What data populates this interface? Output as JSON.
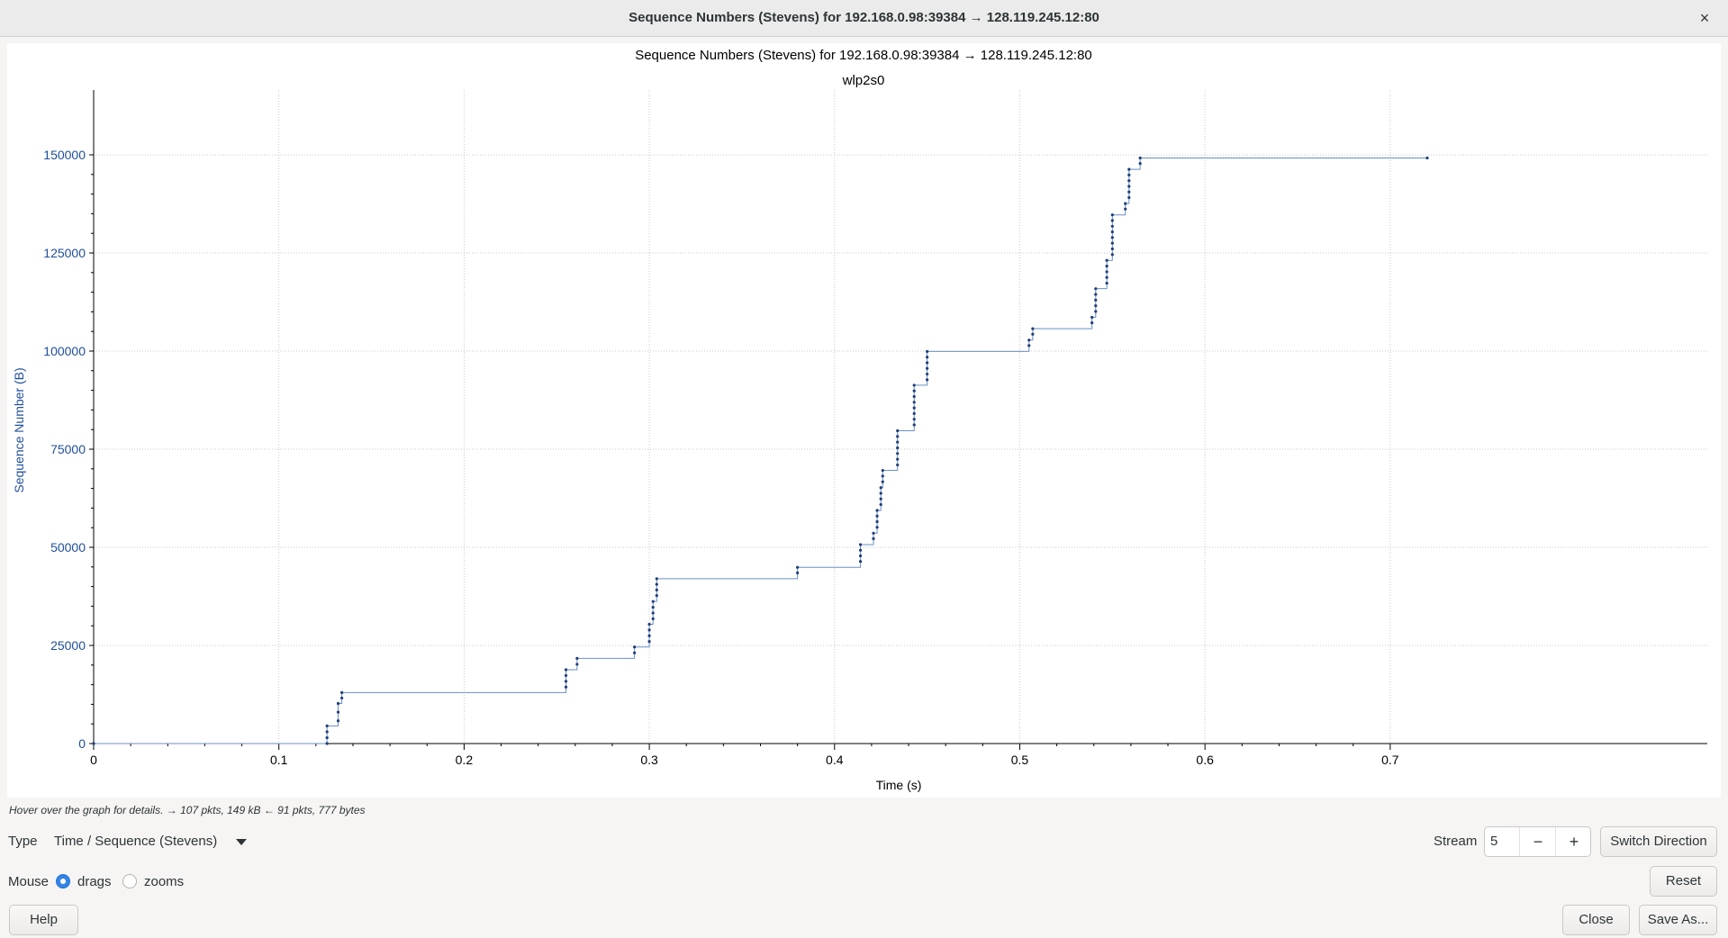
{
  "window": {
    "title": "Sequence Numbers (Stevens) for 192.168.0.98:39384 → 128.119.245.12:80",
    "close_glyph": "×"
  },
  "graph": {
    "title": "Sequence Numbers (Stevens) for 192.168.0.98:39384 → 128.119.245.12:80",
    "subtitle": "wlp2s0"
  },
  "chart_data": {
    "type": "scatter",
    "title": "Sequence Numbers (Stevens) for 192.168.0.98:39384 → 128.119.245.12:80",
    "subtitle": "wlp2s0",
    "xlabel": "Time (s)",
    "ylabel": "Sequence Number (B)",
    "xlim": [
      0,
      0.72
    ],
    "ylim": [
      0,
      150000
    ],
    "x_ticks": [
      "0",
      "0.1",
      "0.2",
      "0.3",
      "0.4",
      "0.5",
      "0.6",
      "0.7"
    ],
    "y_ticks": [
      "0",
      "25000",
      "50000",
      "75000",
      "100000",
      "125000",
      "150000"
    ],
    "grid": true,
    "color": "#1f3d7a",
    "line_color": "#6b8fc2",
    "bursts": [
      {
        "x": 0.0,
        "y_start": 0,
        "y_end": 0,
        "count": 1
      },
      {
        "x": 0.126,
        "y_start": 0,
        "y_end": 4500,
        "count": 4
      },
      {
        "x": 0.132,
        "y_start": 5800,
        "y_end": 10200,
        "count": 3
      },
      {
        "x": 0.134,
        "y_start": 11600,
        "y_end": 13000,
        "count": 2
      },
      {
        "x": 0.255,
        "y_start": 14400,
        "y_end": 18800,
        "count": 4
      },
      {
        "x": 0.261,
        "y_start": 20200,
        "y_end": 21700,
        "count": 2
      },
      {
        "x": 0.292,
        "y_start": 23100,
        "y_end": 24600,
        "count": 2
      },
      {
        "x": 0.3,
        "y_start": 26000,
        "y_end": 30400,
        "count": 4
      },
      {
        "x": 0.302,
        "y_start": 31800,
        "y_end": 36200,
        "count": 4
      },
      {
        "x": 0.304,
        "y_start": 37700,
        "y_end": 42000,
        "count": 4
      },
      {
        "x": 0.38,
        "y_start": 43500,
        "y_end": 44900,
        "count": 2
      },
      {
        "x": 0.414,
        "y_start": 46400,
        "y_end": 50700,
        "count": 4
      },
      {
        "x": 0.421,
        "y_start": 52200,
        "y_end": 53600,
        "count": 2
      },
      {
        "x": 0.423,
        "y_start": 55100,
        "y_end": 59400,
        "count": 4
      },
      {
        "x": 0.425,
        "y_start": 60900,
        "y_end": 65200,
        "count": 4
      },
      {
        "x": 0.426,
        "y_start": 66700,
        "y_end": 69600,
        "count": 3
      },
      {
        "x": 0.434,
        "y_start": 71000,
        "y_end": 79700,
        "count": 7
      },
      {
        "x": 0.443,
        "y_start": 81200,
        "y_end": 91300,
        "count": 8
      },
      {
        "x": 0.45,
        "y_start": 92700,
        "y_end": 99900,
        "count": 6
      },
      {
        "x": 0.505,
        "y_start": 101400,
        "y_end": 102800,
        "count": 2
      },
      {
        "x": 0.507,
        "y_start": 104300,
        "y_end": 105700,
        "count": 2
      },
      {
        "x": 0.539,
        "y_start": 107200,
        "y_end": 108600,
        "count": 2
      },
      {
        "x": 0.541,
        "y_start": 110100,
        "y_end": 115900,
        "count": 5
      },
      {
        "x": 0.547,
        "y_start": 117300,
        "y_end": 123100,
        "count": 5
      },
      {
        "x": 0.55,
        "y_start": 124600,
        "y_end": 134700,
        "count": 8
      },
      {
        "x": 0.557,
        "y_start": 136200,
        "y_end": 137600,
        "count": 2
      },
      {
        "x": 0.559,
        "y_start": 139100,
        "y_end": 146300,
        "count": 6
      },
      {
        "x": 0.565,
        "y_start": 147800,
        "y_end": 149200,
        "count": 2
      },
      {
        "x": 0.72,
        "y_start": 149200,
        "y_end": 149200,
        "count": 1
      }
    ]
  },
  "status": {
    "hint": "Hover over the graph for details. → 107 pkts, 149 kB ← 91 pkts, 777 bytes"
  },
  "controls": {
    "type_label": "Type",
    "type_value": "Time / Sequence (Stevens)",
    "stream_label": "Stream",
    "stream_value": "5",
    "minus_glyph": "−",
    "plus_glyph": "+",
    "switch_direction": "Switch Direction",
    "mouse_label": "Mouse",
    "drags_label": "drags",
    "zooms_label": "zooms",
    "mouse_mode": "drags",
    "reset": "Reset",
    "help": "Help",
    "close": "Close",
    "save_as": "Save As..."
  }
}
